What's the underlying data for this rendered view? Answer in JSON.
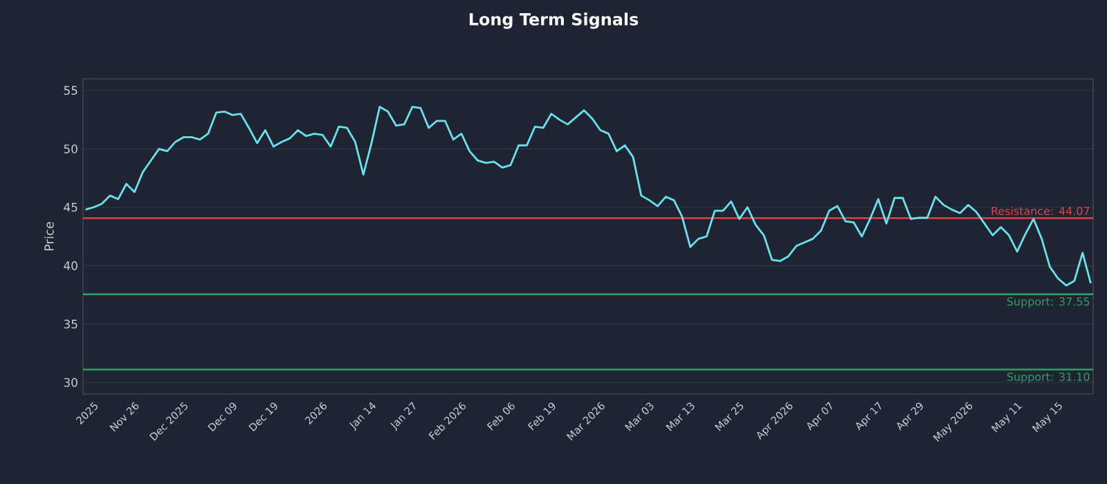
{
  "chart_data": {
    "type": "line",
    "title": "Long Term Signals",
    "ylabel": "Price",
    "categories": [
      null,
      "2025",
      null,
      null,
      null,
      null,
      "Nov 26",
      null,
      null,
      null,
      null,
      null,
      "Dec 2025",
      null,
      null,
      null,
      null,
      null,
      "Dec 09",
      null,
      null,
      null,
      null,
      "Dec 19",
      null,
      null,
      null,
      null,
      null,
      "2026",
      null,
      null,
      null,
      null,
      null,
      "Jan 14",
      null,
      null,
      null,
      null,
      "Jan 27",
      null,
      null,
      null,
      null,
      null,
      "Feb 2026",
      null,
      null,
      null,
      null,
      null,
      "Feb 06",
      null,
      null,
      null,
      null,
      "Feb 19",
      null,
      null,
      null,
      null,
      null,
      "Mar 2026",
      null,
      null,
      null,
      null,
      null,
      "Mar 03",
      null,
      null,
      null,
      null,
      "Mar 13",
      null,
      null,
      null,
      null,
      null,
      "Mar 25",
      null,
      null,
      null,
      null,
      null,
      "Apr 2026",
      null,
      null,
      null,
      null,
      "Apr 07",
      null,
      null,
      null,
      null,
      null,
      "Apr 17",
      null,
      null,
      null,
      null,
      "Apr 29",
      null,
      null,
      null,
      null,
      null,
      "May 2026",
      null,
      null,
      null,
      null,
      null,
      "May 11",
      null,
      null,
      null,
      null,
      "May 15",
      null,
      null,
      null,
      null
    ],
    "series": [
      {
        "color": "#66e3ee",
        "values": [
          44.8,
          45.0,
          45.3,
          46.0,
          45.7,
          47.0,
          46.3,
          48.0,
          49.0,
          50.0,
          49.8,
          50.6,
          51.0,
          51.0,
          50.8,
          51.3,
          53.1,
          53.2,
          52.9,
          53.0,
          51.8,
          50.5,
          51.6,
          50.2,
          50.6,
          50.9,
          51.6,
          51.1,
          51.3,
          51.2,
          50.2,
          51.9,
          51.8,
          50.6,
          47.8,
          50.5,
          53.6,
          53.2,
          52.0,
          52.1,
          53.6,
          53.5,
          51.8,
          52.4,
          52.4,
          50.8,
          51.3,
          49.8,
          49.0,
          48.8,
          48.9,
          48.4,
          48.6,
          50.3,
          50.3,
          51.9,
          51.8,
          53.0,
          52.5,
          52.1,
          52.7,
          53.3,
          52.6,
          51.6,
          51.3,
          49.8,
          50.3,
          49.3,
          46.0,
          45.6,
          45.1,
          45.9,
          45.6,
          44.2,
          41.6,
          42.3,
          42.5,
          44.7,
          44.7,
          45.5,
          44.0,
          45.0,
          43.5,
          42.6,
          40.5,
          40.4,
          40.8,
          41.7,
          42.0,
          42.3,
          43.0,
          44.7,
          45.1,
          43.8,
          43.7,
          42.5,
          44.0,
          45.7,
          43.6,
          45.8,
          45.8,
          44.0,
          44.1,
          44.1,
          45.9,
          45.2,
          44.8,
          44.5,
          45.2,
          44.6,
          43.6,
          42.6,
          43.3,
          42.6,
          41.2,
          42.7,
          44.0,
          42.3,
          39.9,
          38.9,
          38.3,
          38.7,
          41.1,
          38.5
        ]
      }
    ],
    "ylim": [
      29,
      56
    ],
    "yticks": [
      30,
      35,
      40,
      45,
      50,
      55
    ],
    "grid": "y",
    "marker": "none",
    "line_style": "solid",
    "ref_lines": [
      {
        "axis": "y",
        "value": 44.07,
        "label": "Resistance: 44.07",
        "color": "#d9464b"
      },
      {
        "axis": "y",
        "value": 37.55,
        "label": "Support: 37.55",
        "color": "#2f9e5e"
      },
      {
        "axis": "y",
        "value": 31.1,
        "label": "Support: 31.10",
        "color": "#2f9e5e"
      }
    ]
  }
}
